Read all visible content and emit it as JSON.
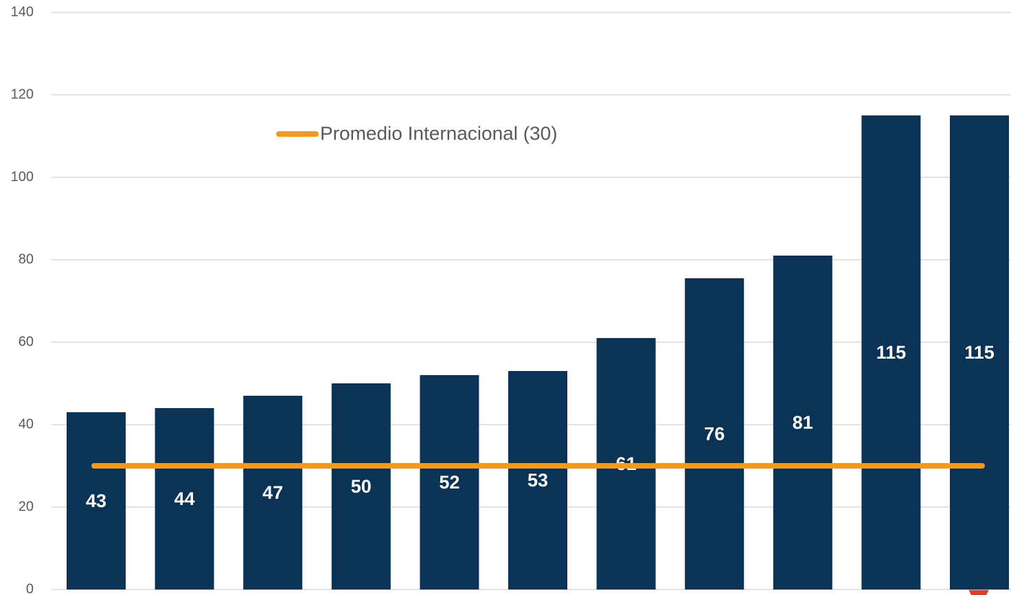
{
  "chart_data": {
    "type": "bar",
    "values": [
      43,
      44,
      47,
      50,
      52,
      53,
      61,
      75.5,
      81,
      115,
      115
    ],
    "value_labels": [
      "43",
      "44",
      "47",
      "50",
      "52",
      "53",
      "61",
      "76",
      "81",
      "115",
      "115"
    ],
    "color": "#0a3356",
    "ylim": [
      0,
      140
    ],
    "yticks": [
      0,
      20,
      40,
      60,
      80,
      100,
      120,
      140
    ],
    "grid": true,
    "reference_line": {
      "name": "Promedio Internacional (30)",
      "value": 30,
      "color": "#f39a1e"
    }
  }
}
